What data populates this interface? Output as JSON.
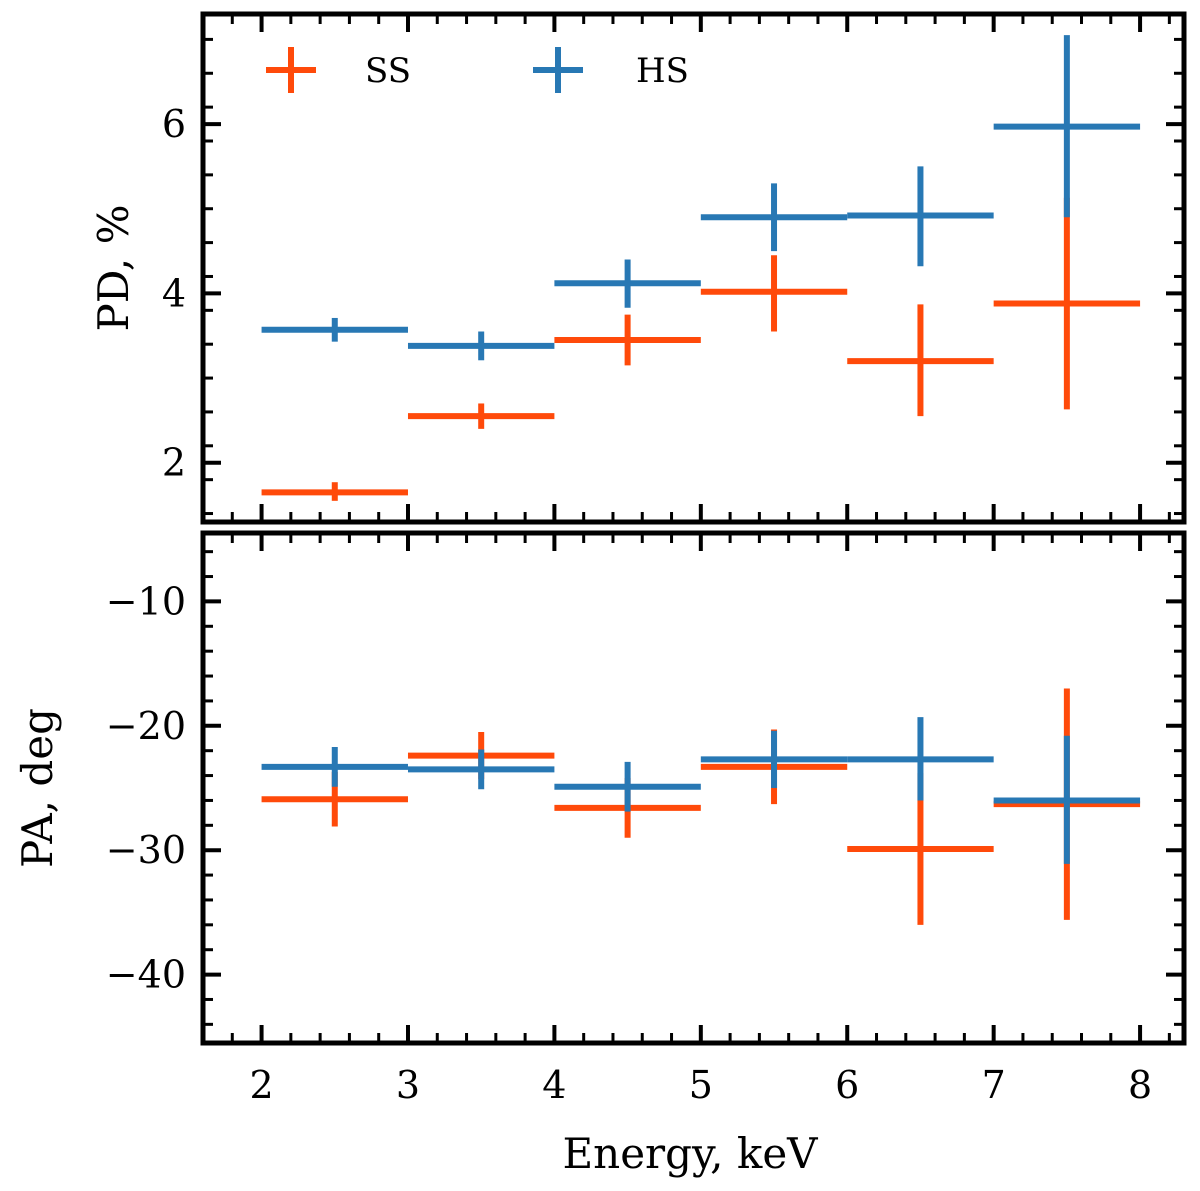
{
  "chart_data": [
    {
      "type": "scatter",
      "panel": "top",
      "ylabel": "PD, %",
      "xlabel": "",
      "xlim": [
        1.6,
        8.3
      ],
      "ylim": [
        1.3,
        7.3
      ],
      "yticks": [
        2,
        4,
        6
      ],
      "ytick_labels": [
        "2",
        "4",
        "6"
      ],
      "legend": {
        "placement": "top-left",
        "horizontal": true
      },
      "series": [
        {
          "name": "SS",
          "color": "#ff4a0a",
          "points": [
            {
              "x": 2.5,
              "xerr": 0.5,
              "y": 1.65,
              "ylo": 1.55,
              "yhi": 1.77
            },
            {
              "x": 3.5,
              "xerr": 0.5,
              "y": 2.55,
              "ylo": 2.4,
              "yhi": 2.7
            },
            {
              "x": 4.5,
              "xerr": 0.5,
              "y": 3.45,
              "ylo": 3.15,
              "yhi": 3.75
            },
            {
              "x": 5.5,
              "xerr": 0.5,
              "y": 4.02,
              "ylo": 3.55,
              "yhi": 4.45
            },
            {
              "x": 6.5,
              "xerr": 0.5,
              "y": 3.2,
              "ylo": 2.55,
              "yhi": 3.87
            },
            {
              "x": 7.5,
              "xerr": 0.5,
              "y": 3.88,
              "ylo": 2.63,
              "yhi": 5.13
            }
          ]
        },
        {
          "name": "HS",
          "color": "#2878b4",
          "points": [
            {
              "x": 2.5,
              "xerr": 0.5,
              "y": 3.57,
              "ylo": 3.43,
              "yhi": 3.71
            },
            {
              "x": 3.5,
              "xerr": 0.5,
              "y": 3.38,
              "ylo": 3.21,
              "yhi": 3.55
            },
            {
              "x": 4.5,
              "xerr": 0.5,
              "y": 4.12,
              "ylo": 3.83,
              "yhi": 4.4
            },
            {
              "x": 5.5,
              "xerr": 0.5,
              "y": 4.9,
              "ylo": 4.5,
              "yhi": 5.3
            },
            {
              "x": 6.5,
              "xerr": 0.5,
              "y": 4.92,
              "ylo": 4.32,
              "yhi": 5.5
            },
            {
              "x": 7.5,
              "xerr": 0.5,
              "y": 5.97,
              "ylo": 4.9,
              "yhi": 7.05
            }
          ]
        }
      ]
    },
    {
      "type": "scatter",
      "panel": "bottom",
      "ylabel": "PA, deg",
      "xlabel": "Energy, keV",
      "xlim": [
        1.6,
        8.3
      ],
      "ylim": [
        -45.5,
        -4.5
      ],
      "xticks": [
        2,
        3,
        4,
        5,
        6,
        7,
        8
      ],
      "xtick_labels": [
        "2",
        "3",
        "4",
        "5",
        "6",
        "7",
        "8"
      ],
      "yticks": [
        -10,
        -20,
        -30,
        -40
      ],
      "ytick_labels": [
        "−10",
        "−20",
        "−30",
        "−40"
      ],
      "series": [
        {
          "name": "SS",
          "color": "#ff4a0a",
          "points": [
            {
              "x": 2.5,
              "xerr": 0.5,
              "y": -25.9,
              "ylo": -28.1,
              "yhi": -23.7
            },
            {
              "x": 3.5,
              "xerr": 0.5,
              "y": -22.4,
              "ylo": -24.3,
              "yhi": -20.5
            },
            {
              "x": 4.5,
              "xerr": 0.5,
              "y": -26.6,
              "ylo": -29.0,
              "yhi": -24.2
            },
            {
              "x": 5.5,
              "xerr": 0.5,
              "y": -23.3,
              "ylo": -26.3,
              "yhi": -20.3
            },
            {
              "x": 6.5,
              "xerr": 0.5,
              "y": -29.9,
              "ylo": -36.0,
              "yhi": -23.8
            },
            {
              "x": 7.5,
              "xerr": 0.5,
              "y": -26.3,
              "ylo": -35.6,
              "yhi": -17.0
            }
          ]
        },
        {
          "name": "HS",
          "color": "#2878b4",
          "points": [
            {
              "x": 2.5,
              "xerr": 0.5,
              "y": -23.3,
              "ylo": -24.9,
              "yhi": -21.7
            },
            {
              "x": 3.5,
              "xerr": 0.5,
              "y": -23.5,
              "ylo": -25.1,
              "yhi": -21.9
            },
            {
              "x": 4.5,
              "xerr": 0.5,
              "y": -24.9,
              "ylo": -26.9,
              "yhi": -22.9
            },
            {
              "x": 5.5,
              "xerr": 0.5,
              "y": -22.7,
              "ylo": -25.0,
              "yhi": -20.4
            },
            {
              "x": 6.5,
              "xerr": 0.5,
              "y": -22.7,
              "ylo": -26.0,
              "yhi": -19.3
            },
            {
              "x": 7.5,
              "xerr": 0.5,
              "y": -26.0,
              "ylo": -31.1,
              "yhi": -20.8
            }
          ]
        }
      ]
    }
  ]
}
